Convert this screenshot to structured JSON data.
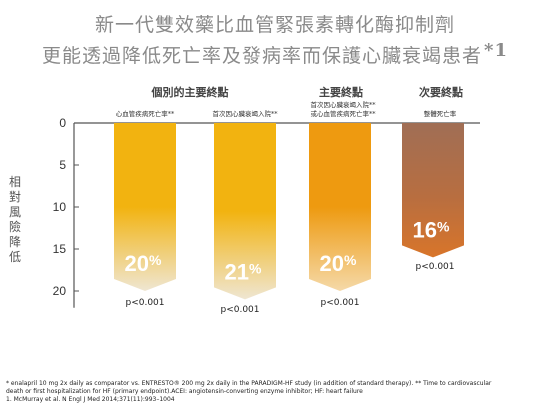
{
  "title": {
    "line1": "新一代雙效藥比血管緊張素轉化酶抑制劑",
    "line2": "更能透過降低死亡率及發病率而保護心臟衰竭患者",
    "footnote_mark": "*1"
  },
  "group_labels": {
    "individual": "個別的主要終點",
    "primary": "主要終點",
    "secondary": "次要終點"
  },
  "bar_labels": [
    "心血管疾病死亡率**",
    "首次因心臟衰竭入院**",
    "首次因心臟衰竭入院**\n或心血管疾病死亡率**",
    "整體死亡率"
  ],
  "chart_data": {
    "type": "bar",
    "ylabel": "相對風險降低",
    "ylim": [
      0,
      22
    ],
    "yticks": [
      0,
      5,
      10,
      15,
      20
    ],
    "inverted": true,
    "categories": [
      "心血管疾病死亡率**",
      "首次因心臟衰竭入院**",
      "首次因心臟衰竭入院**或心血管疾病死亡率**",
      "整體死亡率"
    ],
    "values": [
      20,
      21,
      20,
      16
    ],
    "value_labels": [
      "20%",
      "21%",
      "20%",
      "16%"
    ],
    "p_values": [
      "p<0.001",
      "p<0.001",
      "p<0.001",
      "p<0.001"
    ],
    "colors": [
      "#f2b310",
      "#f2b310",
      "#ee9a10",
      "#a87050"
    ]
  },
  "footer": {
    "line1": "* enalapril 10 mg 2x daily as comparator vs. ENTRESTO® 200 mg 2x daily in the PARADIGM-HF study (in addition of standard therapy). ** Time to cardiovascular",
    "line2": "death or first hospitalization for HF (primary endpoint).ACEI: angiotensin-converting enzyme inhibitor; HF: heart failure",
    "line3": "1. McMurray et al. N Engl J Med 2014;371(11):993–1004"
  }
}
